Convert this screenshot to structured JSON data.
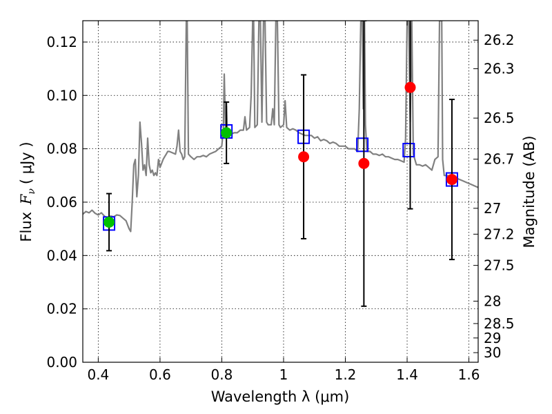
{
  "chart_data": {
    "type": "scatter",
    "xlabel": "Wavelength  λ (μm)",
    "ylabel": "Flux  F_ν  ( μJy )",
    "ylabel_parts": {
      "prefix": "Flux ",
      "symbol": "F",
      "subscript": "ν",
      "suffix": "( μJy )"
    },
    "y2label": "Magnitude (AB)",
    "xlim": [
      0.35,
      1.63
    ],
    "ylim": [
      0.0,
      0.128
    ],
    "grid": true,
    "x_ticks": [
      0.4,
      0.6,
      0.8,
      1.0,
      1.2,
      1.4,
      1.6
    ],
    "x_tick_labels": [
      "0.4",
      "0.6",
      "0.8",
      "1",
      "1.2",
      "1.4",
      "1.6"
    ],
    "y_ticks": [
      0.0,
      0.02,
      0.04,
      0.06,
      0.08,
      0.1,
      0.12
    ],
    "y_tick_labels": [
      "0.00",
      "0.02",
      "0.04",
      "0.06",
      "0.08",
      "0.10",
      "0.12"
    ],
    "mag_ticks": [
      {
        "label": "26.2",
        "flux": 0.1207
      },
      {
        "label": "26.3",
        "flux": 0.11
      },
      {
        "label": "26.5",
        "flux": 0.0915
      },
      {
        "label": "26.7",
        "flux": 0.0761
      },
      {
        "label": "27",
        "flux": 0.0577
      },
      {
        "label": "27.2",
        "flux": 0.048
      },
      {
        "label": "27.5",
        "flux": 0.0363
      },
      {
        "label": "28",
        "flux": 0.0229
      },
      {
        "label": "28.5",
        "flux": 0.0145
      },
      {
        "label": "29",
        "flux": 0.0091
      },
      {
        "label": "30",
        "flux": 0.0036
      }
    ],
    "series": [
      {
        "type": "line",
        "color": "#808080",
        "points": [
          [
            0.35,
            0.0555
          ],
          [
            0.36,
            0.0565
          ],
          [
            0.37,
            0.056
          ],
          [
            0.38,
            0.057
          ],
          [
            0.39,
            0.0558
          ],
          [
            0.4,
            0.0552
          ],
          [
            0.41,
            0.056
          ],
          [
            0.42,
            0.0548
          ],
          [
            0.43,
            0.054
          ],
          [
            0.44,
            0.0548
          ],
          [
            0.45,
            0.0545
          ],
          [
            0.46,
            0.0552
          ],
          [
            0.47,
            0.055
          ],
          [
            0.48,
            0.054
          ],
          [
            0.49,
            0.053
          ],
          [
            0.5,
            0.05
          ],
          [
            0.505,
            0.049
          ],
          [
            0.51,
            0.06
          ],
          [
            0.515,
            0.074
          ],
          [
            0.52,
            0.076
          ],
          [
            0.525,
            0.062
          ],
          [
            0.53,
            0.07
          ],
          [
            0.535,
            0.09
          ],
          [
            0.54,
            0.082
          ],
          [
            0.545,
            0.072
          ],
          [
            0.55,
            0.074
          ],
          [
            0.555,
            0.07
          ],
          [
            0.56,
            0.084
          ],
          [
            0.565,
            0.074
          ],
          [
            0.57,
            0.071
          ],
          [
            0.575,
            0.072
          ],
          [
            0.58,
            0.07
          ],
          [
            0.585,
            0.071
          ],
          [
            0.59,
            0.07
          ],
          [
            0.595,
            0.076
          ],
          [
            0.6,
            0.073
          ],
          [
            0.605,
            0.0745
          ],
          [
            0.61,
            0.076
          ],
          [
            0.615,
            0.077
          ],
          [
            0.62,
            0.078
          ],
          [
            0.625,
            0.079
          ],
          [
            0.63,
            0.079
          ],
          [
            0.64,
            0.0785
          ],
          [
            0.65,
            0.078
          ],
          [
            0.655,
            0.081
          ],
          [
            0.66,
            0.087
          ],
          [
            0.665,
            0.079
          ],
          [
            0.67,
            0.078
          ],
          [
            0.675,
            0.076
          ],
          [
            0.68,
            0.077
          ],
          [
            0.685,
            0.128
          ],
          [
            0.688,
            0.128
          ],
          [
            0.692,
            0.078
          ],
          [
            0.7,
            0.077
          ],
          [
            0.71,
            0.076
          ],
          [
            0.72,
            0.077
          ],
          [
            0.73,
            0.077
          ],
          [
            0.74,
            0.0775
          ],
          [
            0.75,
            0.077
          ],
          [
            0.76,
            0.078
          ],
          [
            0.77,
            0.0785
          ],
          [
            0.78,
            0.079
          ],
          [
            0.79,
            0.08
          ],
          [
            0.8,
            0.081
          ],
          [
            0.805,
            0.087
          ],
          [
            0.808,
            0.108
          ],
          [
            0.812,
            0.088
          ],
          [
            0.815,
            0.096
          ],
          [
            0.818,
            0.086
          ],
          [
            0.82,
            0.085
          ],
          [
            0.83,
            0.0855
          ],
          [
            0.84,
            0.086
          ],
          [
            0.85,
            0.086
          ],
          [
            0.86,
            0.087
          ],
          [
            0.87,
            0.087
          ],
          [
            0.875,
            0.092
          ],
          [
            0.88,
            0.087
          ],
          [
            0.89,
            0.088
          ],
          [
            0.895,
            0.1
          ],
          [
            0.9,
            0.128
          ],
          [
            0.903,
            0.128
          ],
          [
            0.907,
            0.088
          ],
          [
            0.915,
            0.089
          ],
          [
            0.92,
            0.128
          ],
          [
            0.925,
            0.128
          ],
          [
            0.93,
            0.09
          ],
          [
            0.935,
            0.128
          ],
          [
            0.94,
            0.128
          ],
          [
            0.945,
            0.09
          ],
          [
            0.95,
            0.089
          ],
          [
            0.96,
            0.089
          ],
          [
            0.965,
            0.095
          ],
          [
            0.97,
            0.089
          ],
          [
            0.975,
            0.128
          ],
          [
            0.98,
            0.128
          ],
          [
            0.985,
            0.089
          ],
          [
            0.99,
            0.088
          ],
          [
            1.0,
            0.089
          ],
          [
            1.005,
            0.098
          ],
          [
            1.01,
            0.088
          ],
          [
            1.02,
            0.087
          ],
          [
            1.03,
            0.0875
          ],
          [
            1.04,
            0.087
          ],
          [
            1.05,
            0.086
          ],
          [
            1.06,
            0.0855
          ],
          [
            1.07,
            0.085
          ],
          [
            1.08,
            0.085
          ],
          [
            1.09,
            0.085
          ],
          [
            1.1,
            0.084
          ],
          [
            1.11,
            0.0845
          ],
          [
            1.12,
            0.083
          ],
          [
            1.13,
            0.0835
          ],
          [
            1.14,
            0.083
          ],
          [
            1.15,
            0.082
          ],
          [
            1.16,
            0.0825
          ],
          [
            1.17,
            0.082
          ],
          [
            1.18,
            0.081
          ],
          [
            1.19,
            0.081
          ],
          [
            1.2,
            0.081
          ],
          [
            1.21,
            0.08
          ],
          [
            1.22,
            0.08
          ],
          [
            1.23,
            0.08
          ],
          [
            1.24,
            0.079
          ],
          [
            1.245,
            0.095
          ],
          [
            1.25,
            0.128
          ],
          [
            1.255,
            0.128
          ],
          [
            1.258,
            0.095
          ],
          [
            1.262,
            0.128
          ],
          [
            1.265,
            0.089
          ],
          [
            1.27,
            0.079
          ],
          [
            1.28,
            0.079
          ],
          [
            1.29,
            0.078
          ],
          [
            1.3,
            0.078
          ],
          [
            1.31,
            0.0775
          ],
          [
            1.32,
            0.078
          ],
          [
            1.33,
            0.077
          ],
          [
            1.34,
            0.077
          ],
          [
            1.35,
            0.0765
          ],
          [
            1.36,
            0.076
          ],
          [
            1.37,
            0.076
          ],
          [
            1.38,
            0.0755
          ],
          [
            1.39,
            0.075
          ],
          [
            1.395,
            0.084
          ],
          [
            1.4,
            0.128
          ],
          [
            1.405,
            0.128
          ],
          [
            1.41,
            0.09
          ],
          [
            1.415,
            0.128
          ],
          [
            1.42,
            0.078
          ],
          [
            1.43,
            0.074
          ],
          [
            1.44,
            0.074
          ],
          [
            1.45,
            0.0735
          ],
          [
            1.46,
            0.074
          ],
          [
            1.47,
            0.073
          ],
          [
            1.48,
            0.072
          ],
          [
            1.49,
            0.076
          ],
          [
            1.5,
            0.077
          ],
          [
            1.505,
            0.128
          ],
          [
            1.512,
            0.128
          ],
          [
            1.515,
            0.076
          ],
          [
            1.52,
            0.07
          ],
          [
            1.53,
            0.07
          ],
          [
            1.54,
            0.0695
          ],
          [
            1.55,
            0.069
          ],
          [
            1.56,
            0.069
          ],
          [
            1.57,
            0.0685
          ],
          [
            1.58,
            0.068
          ],
          [
            1.59,
            0.0675
          ],
          [
            1.6,
            0.067
          ],
          [
            1.61,
            0.0665
          ],
          [
            1.62,
            0.066
          ],
          [
            1.63,
            0.0655
          ]
        ]
      },
      {
        "type": "squares",
        "color": "#0000ff",
        "points": [
          [
            0.435,
            0.052
          ],
          [
            0.815,
            0.0865
          ],
          [
            1.065,
            0.0845
          ],
          [
            1.255,
            0.0815
          ],
          [
            1.405,
            0.0795
          ],
          [
            1.545,
            0.0685
          ]
        ]
      },
      {
        "type": "points",
        "color": "#00c000",
        "points": [
          {
            "x": 0.435,
            "y": 0.0525,
            "err": 0.0107
          },
          {
            "x": 0.815,
            "y": 0.086,
            "err": 0.0115
          }
        ]
      },
      {
        "type": "points",
        "color": "#ff0000",
        "points": [
          {
            "x": 1.065,
            "y": 0.077,
            "err": 0.0307
          },
          {
            "x": 1.26,
            "y": 0.0745,
            "err": 0.0535
          },
          {
            "x": 1.41,
            "y": 0.103,
            "err": 0.0455
          },
          {
            "x": 1.545,
            "y": 0.0685,
            "err": 0.03
          }
        ]
      }
    ]
  }
}
